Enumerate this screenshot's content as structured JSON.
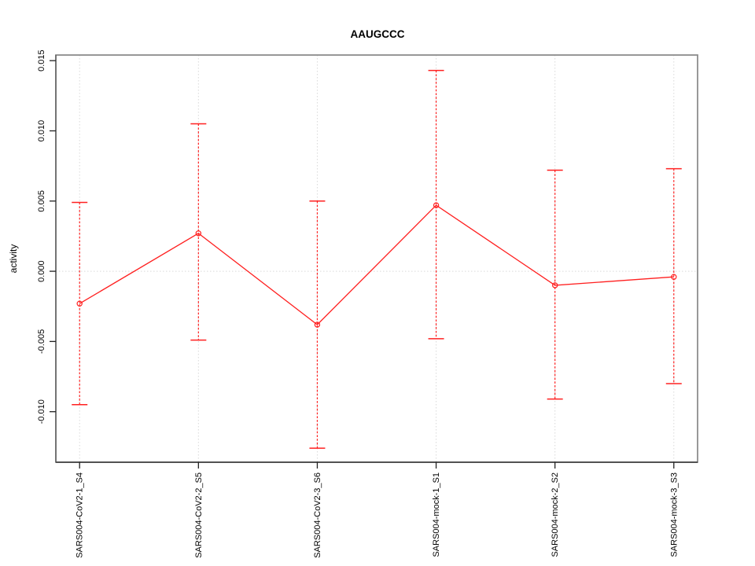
{
  "chart_data": {
    "type": "line",
    "title": "AAUGCCC",
    "xlabel": "",
    "ylabel": "activity",
    "categories": [
      "SARS004-CoV2-1_S4",
      "SARS004-CoV2-2_S5",
      "SARS004-CoV2-3_S6",
      "SARS004-mock-1_S1",
      "SARS004-mock-2_S2",
      "SARS004-mock-3_S3"
    ],
    "series": [
      {
        "name": "activity",
        "values": [
          -0.0023,
          0.0027,
          -0.0038,
          0.0047,
          -0.001,
          -0.0004
        ],
        "error_low": [
          -0.0095,
          -0.0049,
          -0.0126,
          -0.0048,
          -0.0091,
          -0.008
        ],
        "error_high": [
          0.0049,
          0.0105,
          0.005,
          0.0143,
          0.0072,
          0.0073
        ],
        "marker": "open-circle",
        "color": "#ff2020"
      }
    ],
    "y_ticks": [
      0.015,
      0.01,
      0.005,
      0.0,
      -0.005,
      -0.01
    ],
    "y_tick_labels": [
      "0.015",
      "0.010",
      "0.005",
      "0.000",
      "-0.005",
      "-0.010"
    ],
    "ylim": [
      -0.0136,
      0.0154
    ],
    "xlim": [
      0.8,
      6.2
    ],
    "reference_line_y": 0,
    "grid": {
      "vertical_at_categories": true,
      "horizontal_at_zero": true,
      "style": "dotted"
    },
    "legend": null,
    "colors": {
      "grid": "#d9d9d9",
      "box": "#8c8c8c",
      "axis": "#222222",
      "text": "#000000",
      "background": "#ffffff"
    }
  }
}
